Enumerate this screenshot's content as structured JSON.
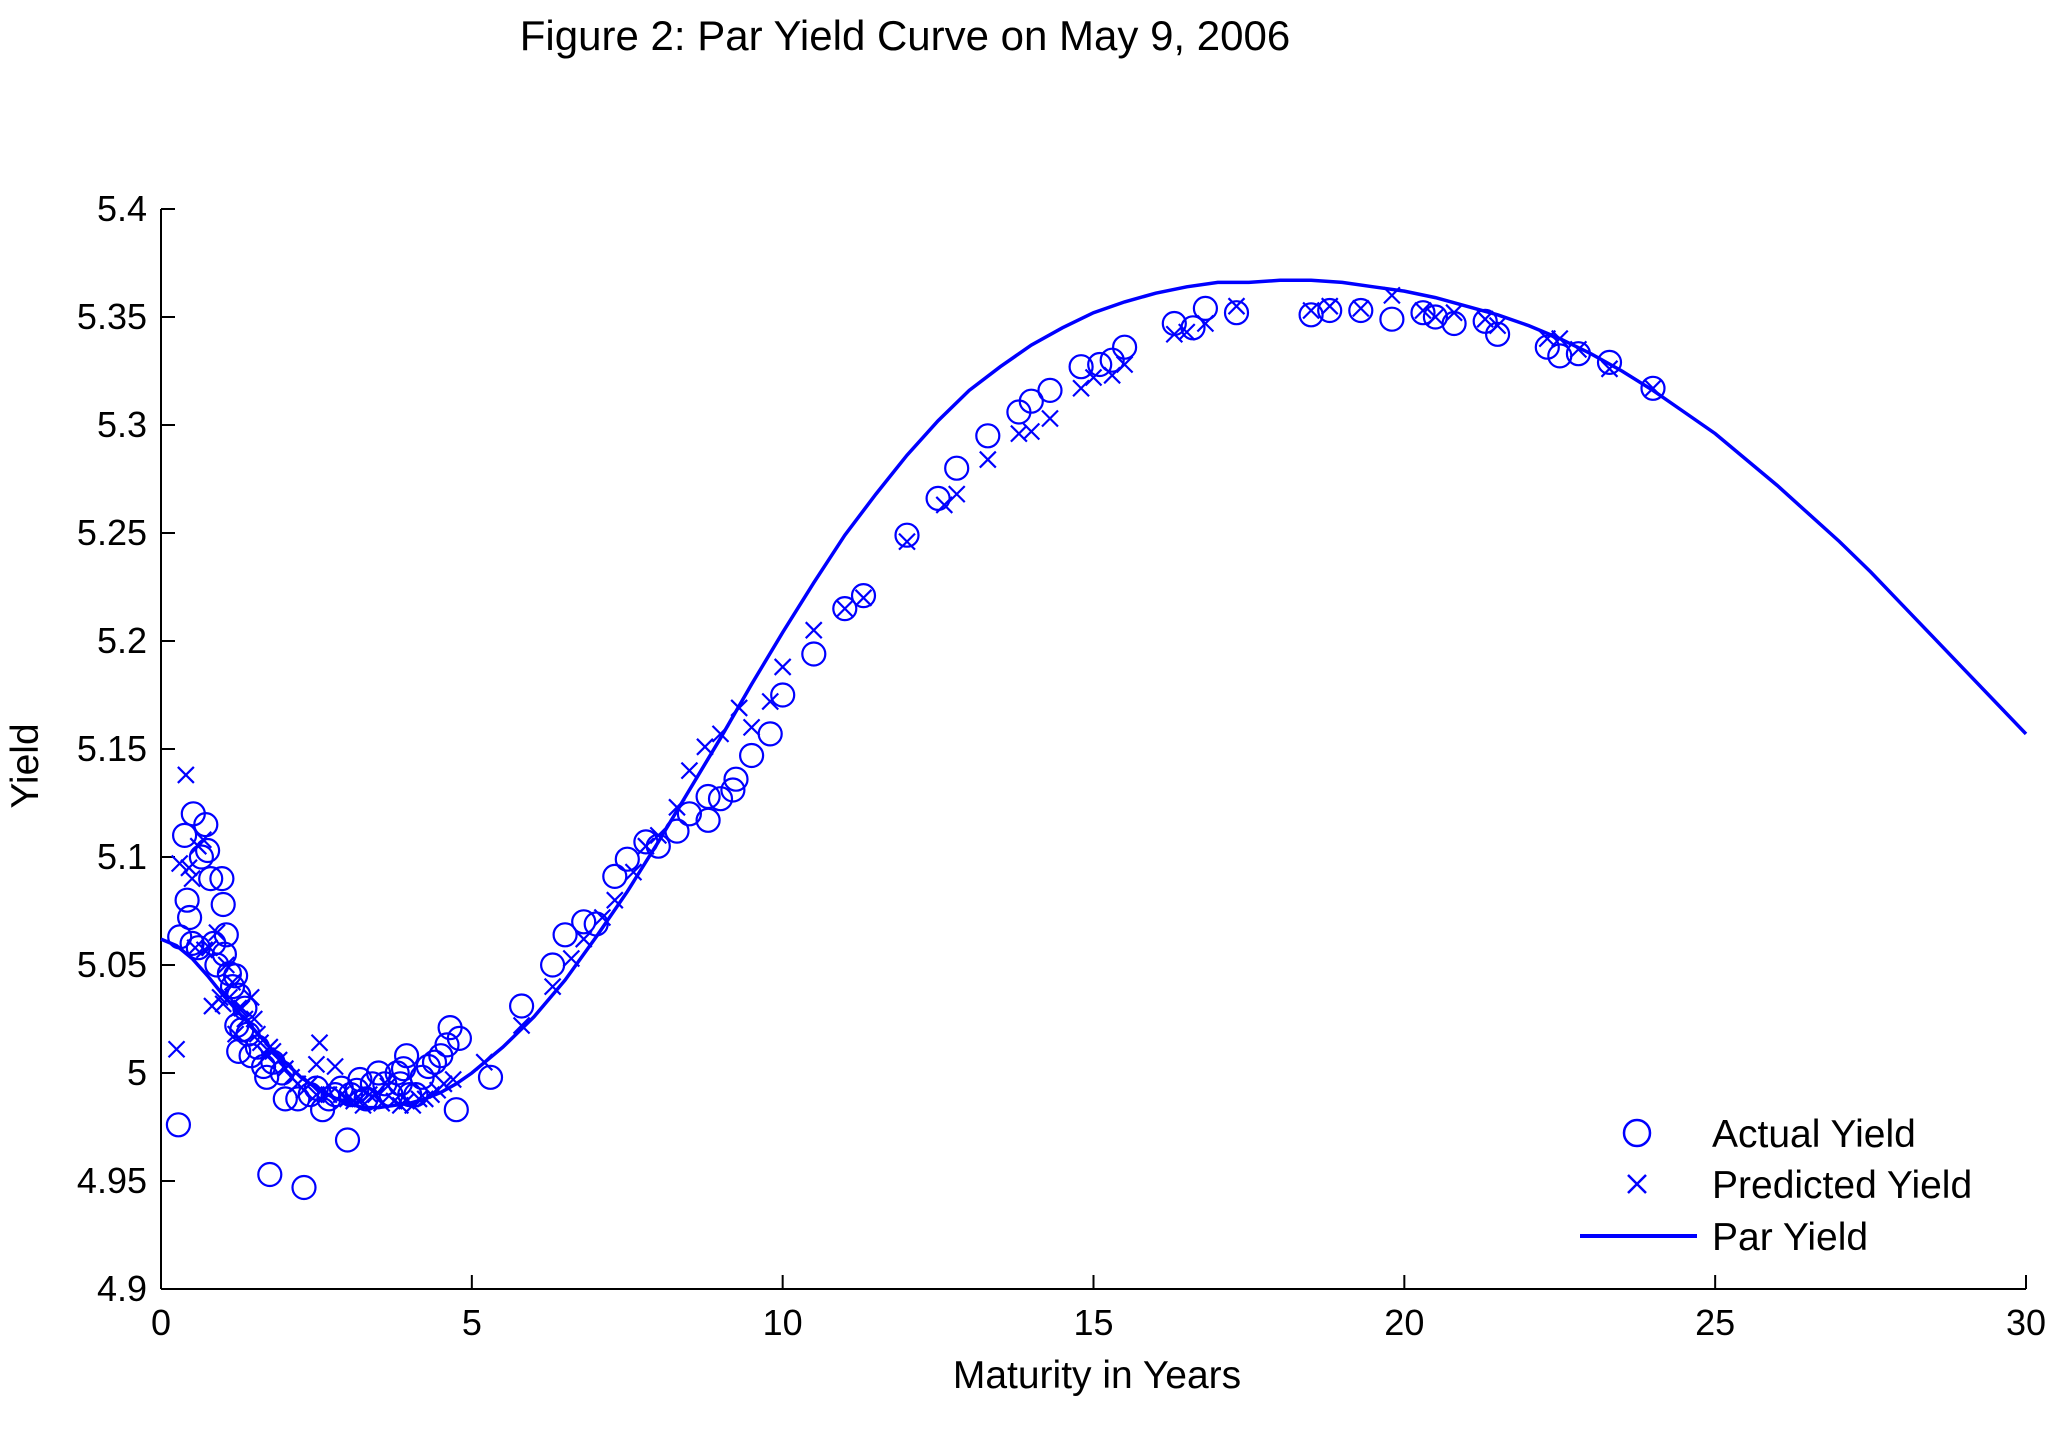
{
  "chart_data": {
    "type": "scatter",
    "title": "Figure 2: Par Yield Curve on May 9, 2006",
    "xlabel": "Maturity in Years",
    "ylabel": "Yield",
    "xlim": [
      0,
      30
    ],
    "ylim": [
      4.9,
      5.4
    ],
    "xticks": [
      0,
      5,
      10,
      15,
      20,
      25,
      30
    ],
    "xtick_labels": [
      "0",
      "5",
      "10",
      "15",
      "20",
      "25",
      "30"
    ],
    "yticks": [
      4.9,
      4.95,
      5.0,
      5.05,
      5.1,
      5.15,
      5.2,
      5.25,
      5.3,
      5.35,
      5.4
    ],
    "ytick_labels": [
      "4.9",
      "4.95",
      "5",
      "5.05",
      "5.1",
      "5.15",
      "5.2",
      "5.25",
      "5.3",
      "5.35",
      "5.4"
    ],
    "grid": false,
    "legend_position": "bottom-right",
    "color": "#0000FF",
    "series": [
      {
        "name": "Actual Yield",
        "marker": "circle",
        "points": [
          [
            0.28,
            4.976
          ],
          [
            0.3,
            5.063
          ],
          [
            0.38,
            5.11
          ],
          [
            0.42,
            5.08
          ],
          [
            0.46,
            5.072
          ],
          [
            0.5,
            5.06
          ],
          [
            0.52,
            5.12
          ],
          [
            0.6,
            5.058
          ],
          [
            0.65,
            5.1
          ],
          [
            0.72,
            5.115
          ],
          [
            0.75,
            5.103
          ],
          [
            0.8,
            5.09
          ],
          [
            0.85,
            5.06
          ],
          [
            0.9,
            5.05
          ],
          [
            0.98,
            5.09
          ],
          [
            1.0,
            5.078
          ],
          [
            1.02,
            5.055
          ],
          [
            1.05,
            5.064
          ],
          [
            1.1,
            5.046
          ],
          [
            1.15,
            5.04
          ],
          [
            1.2,
            5.045
          ],
          [
            1.25,
            5.036
          ],
          [
            1.22,
            5.022
          ],
          [
            1.3,
            5.02
          ],
          [
            1.25,
            5.01
          ],
          [
            1.35,
            5.03
          ],
          [
            1.4,
            5.018
          ],
          [
            1.45,
            5.008
          ],
          [
            1.55,
            5.012
          ],
          [
            1.65,
            5.003
          ],
          [
            1.7,
            4.998
          ],
          [
            1.75,
            4.953
          ],
          [
            1.8,
            5.005
          ],
          [
            1.95,
            5.0
          ],
          [
            2.0,
            4.988
          ],
          [
            2.2,
            4.988
          ],
          [
            2.3,
            4.947
          ],
          [
            2.4,
            4.99
          ],
          [
            2.5,
            4.993
          ],
          [
            2.6,
            4.983
          ],
          [
            2.7,
            4.988
          ],
          [
            2.8,
            4.99
          ],
          [
            2.9,
            4.993
          ],
          [
            3.0,
            4.969
          ],
          [
            3.05,
            4.99
          ],
          [
            3.15,
            4.992
          ],
          [
            3.2,
            4.997
          ],
          [
            3.3,
            4.988
          ],
          [
            3.4,
            4.995
          ],
          [
            3.5,
            5.0
          ],
          [
            3.6,
            4.995
          ],
          [
            3.7,
            4.99
          ],
          [
            3.8,
            5.0
          ],
          [
            3.85,
            4.995
          ],
          [
            3.9,
            5.002
          ],
          [
            3.95,
            5.008
          ],
          [
            4.0,
            4.99
          ],
          [
            4.1,
            4.99
          ],
          [
            4.2,
            4.998
          ],
          [
            4.3,
            5.003
          ],
          [
            4.4,
            5.005
          ],
          [
            4.5,
            5.008
          ],
          [
            4.6,
            5.013
          ],
          [
            4.65,
            5.021
          ],
          [
            4.75,
            4.983
          ],
          [
            4.8,
            5.016
          ],
          [
            5.3,
            4.998
          ],
          [
            5.8,
            5.031
          ],
          [
            6.3,
            5.05
          ],
          [
            6.5,
            5.064
          ],
          [
            6.8,
            5.07
          ],
          [
            7.0,
            5.069
          ],
          [
            7.3,
            5.091
          ],
          [
            7.5,
            5.099
          ],
          [
            7.8,
            5.107
          ],
          [
            8.0,
            5.105
          ],
          [
            8.3,
            5.112
          ],
          [
            8.5,
            5.12
          ],
          [
            8.8,
            5.117
          ],
          [
            8.8,
            5.128
          ],
          [
            9.0,
            5.127
          ],
          [
            9.2,
            5.131
          ],
          [
            9.25,
            5.136
          ],
          [
            9.5,
            5.147
          ],
          [
            9.8,
            5.157
          ],
          [
            10.0,
            5.175
          ],
          [
            10.5,
            5.194
          ],
          [
            11.0,
            5.215
          ],
          [
            11.3,
            5.221
          ],
          [
            12.0,
            5.249
          ],
          [
            12.5,
            5.266
          ],
          [
            12.8,
            5.28
          ],
          [
            13.3,
            5.295
          ],
          [
            13.8,
            5.306
          ],
          [
            14.0,
            5.311
          ],
          [
            14.3,
            5.316
          ],
          [
            14.8,
            5.327
          ],
          [
            15.1,
            5.328
          ],
          [
            15.3,
            5.33
          ],
          [
            15.5,
            5.336
          ],
          [
            16.3,
            5.347
          ],
          [
            16.6,
            5.345
          ],
          [
            16.8,
            5.354
          ],
          [
            17.3,
            5.352
          ],
          [
            18.5,
            5.351
          ],
          [
            18.8,
            5.353
          ],
          [
            19.3,
            5.353
          ],
          [
            19.8,
            5.349
          ],
          [
            20.3,
            5.352
          ],
          [
            20.5,
            5.35
          ],
          [
            20.8,
            5.347
          ],
          [
            21.3,
            5.348
          ],
          [
            21.5,
            5.342
          ],
          [
            22.3,
            5.336
          ],
          [
            22.5,
            5.332
          ],
          [
            22.8,
            5.333
          ],
          [
            23.3,
            5.329
          ],
          [
            24.0,
            5.317
          ]
        ]
      },
      {
        "name": "Predicted Yield",
        "marker": "x",
        "points": [
          [
            0.25,
            5.011
          ],
          [
            0.3,
            5.097
          ],
          [
            0.4,
            5.138
          ],
          [
            0.45,
            5.095
          ],
          [
            0.5,
            5.09
          ],
          [
            0.55,
            5.058
          ],
          [
            0.6,
            5.105
          ],
          [
            0.68,
            5.108
          ],
          [
            0.7,
            5.057
          ],
          [
            0.78,
            5.058
          ],
          [
            0.82,
            5.031
          ],
          [
            0.9,
            5.065
          ],
          [
            0.95,
            5.035
          ],
          [
            1.0,
            5.032
          ],
          [
            1.05,
            5.05
          ],
          [
            1.1,
            5.035
          ],
          [
            1.15,
            5.042
          ],
          [
            1.2,
            5.018
          ],
          [
            1.25,
            5.03
          ],
          [
            1.3,
            5.03
          ],
          [
            1.35,
            5.025
          ],
          [
            1.45,
            5.035
          ],
          [
            1.5,
            5.025
          ],
          [
            1.55,
            5.018
          ],
          [
            1.6,
            5.014
          ],
          [
            1.7,
            5.008
          ],
          [
            1.75,
            5.012
          ],
          [
            1.8,
            5.01
          ],
          [
            1.9,
            5.006
          ],
          [
            2.0,
            5.002
          ],
          [
            2.1,
            4.998
          ],
          [
            2.2,
            4.995
          ],
          [
            2.3,
            4.992
          ],
          [
            2.4,
            4.995
          ],
          [
            2.5,
            4.99
          ],
          [
            2.5,
            5.004
          ],
          [
            2.55,
            5.014
          ],
          [
            2.7,
            4.99
          ],
          [
            2.8,
            5.003
          ],
          [
            2.9,
            4.99
          ],
          [
            3.0,
            4.988
          ],
          [
            3.1,
            4.987
          ],
          [
            3.2,
            4.988
          ],
          [
            3.25,
            4.985
          ],
          [
            3.35,
            4.99
          ],
          [
            3.45,
            4.99
          ],
          [
            3.55,
            4.986
          ],
          [
            3.65,
            4.994
          ],
          [
            3.75,
            4.987
          ],
          [
            3.85,
            4.985
          ],
          [
            3.95,
            4.987
          ],
          [
            4.05,
            4.985
          ],
          [
            4.15,
            4.988
          ],
          [
            4.25,
            4.988
          ],
          [
            4.35,
            4.99
          ],
          [
            4.45,
            4.992
          ],
          [
            4.55,
            4.995
          ],
          [
            4.7,
            4.997
          ],
          [
            5.2,
            5.005
          ],
          [
            5.8,
            5.022
          ],
          [
            6.3,
            5.04
          ],
          [
            6.6,
            5.053
          ],
          [
            6.8,
            5.062
          ],
          [
            7.1,
            5.072
          ],
          [
            7.3,
            5.08
          ],
          [
            7.6,
            5.093
          ],
          [
            7.8,
            5.105
          ],
          [
            8.0,
            5.11
          ],
          [
            8.3,
            5.123
          ],
          [
            8.5,
            5.14
          ],
          [
            8.75,
            5.151
          ],
          [
            9.0,
            5.157
          ],
          [
            9.3,
            5.169
          ],
          [
            9.5,
            5.16
          ],
          [
            9.8,
            5.172
          ],
          [
            10.0,
            5.188
          ],
          [
            10.5,
            5.205
          ],
          [
            11.0,
            5.215
          ],
          [
            11.3,
            5.22
          ],
          [
            12.0,
            5.246
          ],
          [
            12.6,
            5.263
          ],
          [
            12.8,
            5.268
          ],
          [
            13.3,
            5.284
          ],
          [
            13.8,
            5.296
          ],
          [
            14.0,
            5.297
          ],
          [
            14.3,
            5.303
          ],
          [
            14.8,
            5.317
          ],
          [
            15.0,
            5.322
          ],
          [
            15.3,
            5.323
          ],
          [
            15.5,
            5.328
          ],
          [
            16.3,
            5.342
          ],
          [
            16.5,
            5.343
          ],
          [
            16.8,
            5.347
          ],
          [
            17.3,
            5.355
          ],
          [
            18.5,
            5.353
          ],
          [
            18.8,
            5.355
          ],
          [
            19.3,
            5.354
          ],
          [
            19.8,
            5.36
          ],
          [
            20.3,
            5.353
          ],
          [
            20.5,
            5.35
          ],
          [
            20.8,
            5.352
          ],
          [
            21.3,
            5.349
          ],
          [
            21.5,
            5.346
          ],
          [
            22.3,
            5.34
          ],
          [
            22.5,
            5.34
          ],
          [
            22.8,
            5.335
          ],
          [
            23.3,
            5.326
          ],
          [
            24.0,
            5.317
          ]
        ]
      },
      {
        "name": "Par Yield",
        "marker": "line",
        "points": [
          [
            0,
            5.062
          ],
          [
            0.25,
            5.059
          ],
          [
            0.5,
            5.053
          ],
          [
            0.75,
            5.045
          ],
          [
            1.0,
            5.036
          ],
          [
            1.25,
            5.028
          ],
          [
            1.5,
            5.02
          ],
          [
            1.75,
            5.012
          ],
          [
            2.0,
            5.005
          ],
          [
            2.25,
            4.998
          ],
          [
            2.5,
            4.993
          ],
          [
            2.75,
            4.989
          ],
          [
            3.0,
            4.986
          ],
          [
            3.25,
            4.984
          ],
          [
            3.5,
            4.984
          ],
          [
            3.75,
            4.985
          ],
          [
            4.0,
            4.986
          ],
          [
            4.25,
            4.988
          ],
          [
            4.5,
            4.991
          ],
          [
            4.75,
            4.995
          ],
          [
            5.0,
            5.0
          ],
          [
            5.5,
            5.012
          ],
          [
            6.0,
            5.026
          ],
          [
            6.5,
            5.043
          ],
          [
            7.0,
            5.063
          ],
          [
            7.5,
            5.084
          ],
          [
            8.0,
            5.107
          ],
          [
            8.5,
            5.131
          ],
          [
            9.0,
            5.155
          ],
          [
            9.5,
            5.18
          ],
          [
            10.0,
            5.204
          ],
          [
            10.5,
            5.227
          ],
          [
            11.0,
            5.249
          ],
          [
            11.5,
            5.268
          ],
          [
            12.0,
            5.286
          ],
          [
            12.5,
            5.302
          ],
          [
            13.0,
            5.316
          ],
          [
            13.5,
            5.327
          ],
          [
            14.0,
            5.337
          ],
          [
            14.5,
            5.345
          ],
          [
            15.0,
            5.352
          ],
          [
            15.5,
            5.357
          ],
          [
            16.0,
            5.361
          ],
          [
            16.5,
            5.364
          ],
          [
            17.0,
            5.366
          ],
          [
            17.5,
            5.366
          ],
          [
            18.0,
            5.367
          ],
          [
            18.5,
            5.367
          ],
          [
            19.0,
            5.366
          ],
          [
            19.5,
            5.364
          ],
          [
            20.0,
            5.362
          ],
          [
            20.5,
            5.359
          ],
          [
            21.0,
            5.355
          ],
          [
            21.5,
            5.351
          ],
          [
            22.0,
            5.346
          ],
          [
            22.5,
            5.34
          ],
          [
            23.0,
            5.333
          ],
          [
            23.5,
            5.325
          ],
          [
            24.0,
            5.316
          ],
          [
            24.5,
            5.306
          ],
          [
            25.0,
            5.296
          ],
          [
            25.5,
            5.284
          ],
          [
            26.0,
            5.272
          ],
          [
            26.5,
            5.259
          ],
          [
            27.0,
            5.246
          ],
          [
            27.5,
            5.232
          ],
          [
            28.0,
            5.217
          ],
          [
            28.5,
            5.202
          ],
          [
            29.0,
            5.187
          ],
          [
            29.5,
            5.172
          ],
          [
            30.0,
            5.157
          ]
        ]
      }
    ]
  }
}
